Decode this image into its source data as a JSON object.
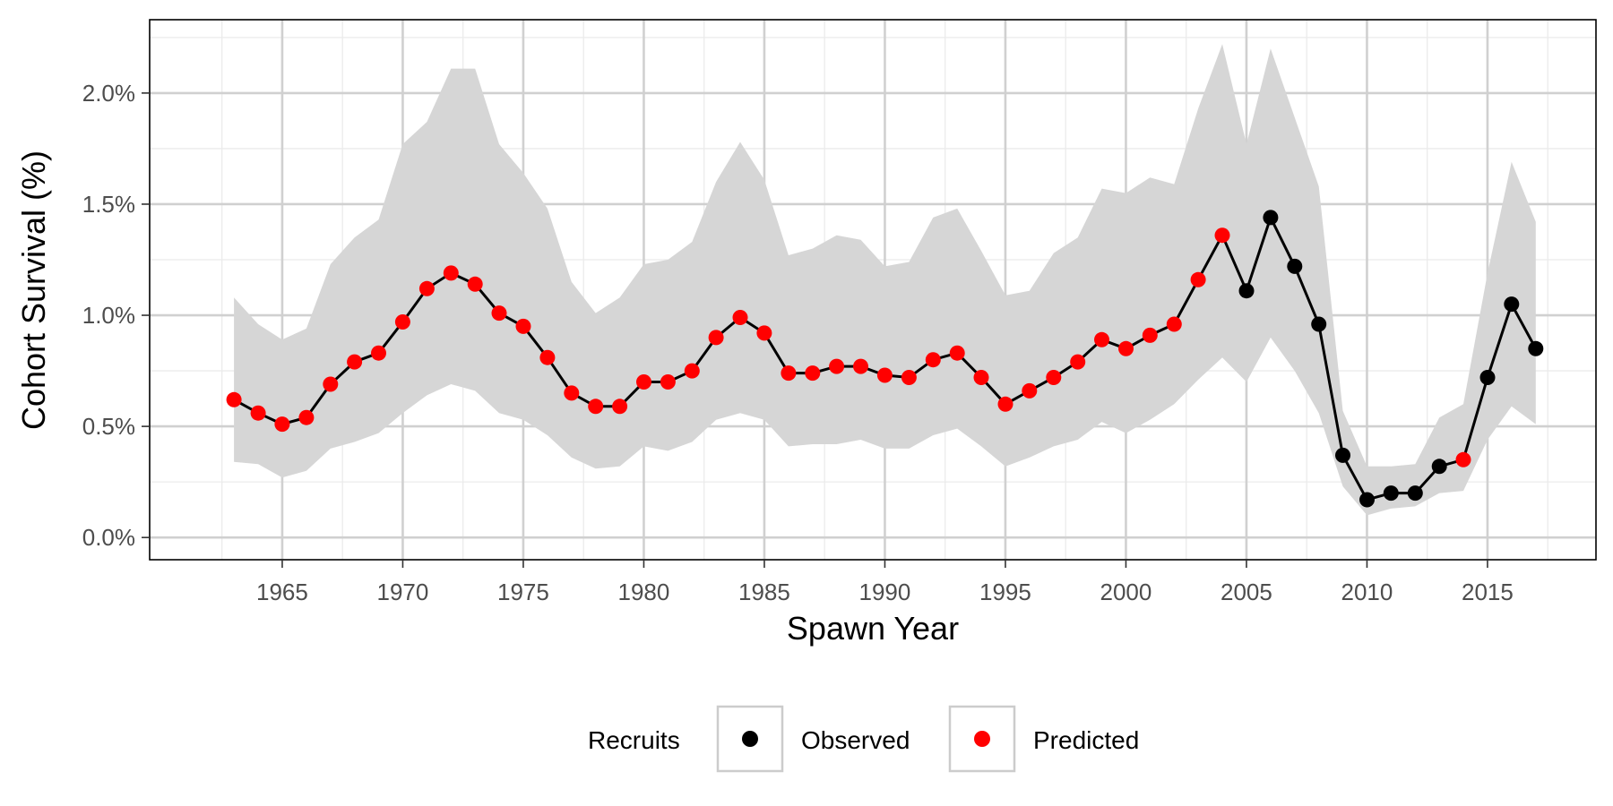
{
  "chart_data": {
    "type": "line",
    "title": "",
    "xlabel": "Spawn Year",
    "ylabel": "Cohort Survival (%)",
    "xlim": [
      1959.5,
      2019.5
    ],
    "ylim": [
      -0.1,
      2.33
    ],
    "x_ticks": [
      1965,
      1970,
      1975,
      1980,
      1985,
      1990,
      1995,
      2000,
      2005,
      2010,
      2015
    ],
    "x_tick_labels": [
      "1965",
      "1970",
      "1975",
      "1980",
      "1985",
      "1990",
      "1995",
      "2000",
      "2005",
      "2010",
      "2015"
    ],
    "y_ticks": [
      0.0,
      0.5,
      1.0,
      1.5,
      2.0
    ],
    "y_tick_labels": [
      "0.0%",
      "0.5%",
      "1.0%",
      "1.5%",
      "2.0%"
    ],
    "grid": true,
    "legend": {
      "title": "Recruits",
      "position": "bottom",
      "entries": [
        {
          "label": "Observed",
          "color": "#000000"
        },
        {
          "label": "Predicted",
          "color": "#ff0000"
        }
      ]
    },
    "colors": {
      "line": "#000000",
      "ribbon": "#d6d6d6",
      "observed": "#000000",
      "predicted": "#ff0000",
      "grid": "#d0d0d0"
    },
    "x": [
      1963,
      1964,
      1965,
      1966,
      1967,
      1968,
      1969,
      1970,
      1971,
      1972,
      1973,
      1974,
      1975,
      1976,
      1977,
      1978,
      1979,
      1980,
      1981,
      1982,
      1983,
      1984,
      1985,
      1986,
      1987,
      1988,
      1989,
      1990,
      1991,
      1992,
      1993,
      1994,
      1995,
      1996,
      1997,
      1998,
      1999,
      2000,
      2001,
      2002,
      2003,
      2004,
      2005,
      2006,
      2007,
      2008,
      2009,
      2010,
      2011,
      2012,
      2013,
      2014,
      2015,
      2016,
      2017
    ],
    "y": [
      0.62,
      0.56,
      0.51,
      0.54,
      0.69,
      0.79,
      0.83,
      0.97,
      1.12,
      1.19,
      1.14,
      1.01,
      0.95,
      0.81,
      0.65,
      0.59,
      0.59,
      0.7,
      0.7,
      0.75,
      0.9,
      0.99,
      0.92,
      0.74,
      0.74,
      0.77,
      0.77,
      0.73,
      0.72,
      0.8,
      0.83,
      0.72,
      0.6,
      0.66,
      0.72,
      0.79,
      0.89,
      0.85,
      0.91,
      0.96,
      1.16,
      1.36,
      1.11,
      1.44,
      1.22,
      0.96,
      0.37,
      0.17,
      0.2,
      0.2,
      0.32,
      0.35,
      0.72,
      1.05,
      0.85
    ],
    "lower": [
      0.34,
      0.33,
      0.27,
      0.3,
      0.4,
      0.43,
      0.47,
      0.56,
      0.64,
      0.69,
      0.66,
      0.56,
      0.53,
      0.46,
      0.36,
      0.31,
      0.32,
      0.41,
      0.39,
      0.43,
      0.53,
      0.56,
      0.53,
      0.41,
      0.42,
      0.42,
      0.44,
      0.4,
      0.4,
      0.46,
      0.49,
      0.41,
      0.32,
      0.36,
      0.41,
      0.44,
      0.52,
      0.47,
      0.53,
      0.6,
      0.71,
      0.81,
      0.7,
      0.9,
      0.75,
      0.56,
      0.23,
      0.1,
      0.13,
      0.14,
      0.2,
      0.21,
      0.44,
      0.59,
      0.51
    ],
    "upper": [
      1.08,
      0.96,
      0.89,
      0.94,
      1.23,
      1.35,
      1.43,
      1.77,
      1.87,
      2.11,
      2.11,
      1.77,
      1.64,
      1.48,
      1.15,
      1.01,
      1.08,
      1.23,
      1.25,
      1.33,
      1.6,
      1.78,
      1.61,
      1.27,
      1.3,
      1.36,
      1.34,
      1.22,
      1.24,
      1.44,
      1.48,
      1.29,
      1.09,
      1.11,
      1.28,
      1.35,
      1.57,
      1.55,
      1.62,
      1.59,
      1.93,
      2.22,
      1.77,
      2.2,
      1.89,
      1.58,
      0.57,
      0.32,
      0.32,
      0.33,
      0.54,
      0.6,
      1.19,
      1.69,
      1.42
    ],
    "recruits": [
      "Predicted",
      "Predicted",
      "Predicted",
      "Predicted",
      "Predicted",
      "Predicted",
      "Predicted",
      "Predicted",
      "Predicted",
      "Predicted",
      "Predicted",
      "Predicted",
      "Predicted",
      "Predicted",
      "Predicted",
      "Predicted",
      "Predicted",
      "Predicted",
      "Predicted",
      "Predicted",
      "Predicted",
      "Predicted",
      "Predicted",
      "Predicted",
      "Predicted",
      "Predicted",
      "Predicted",
      "Predicted",
      "Predicted",
      "Predicted",
      "Predicted",
      "Predicted",
      "Predicted",
      "Predicted",
      "Predicted",
      "Predicted",
      "Predicted",
      "Predicted",
      "Predicted",
      "Predicted",
      "Predicted",
      "Predicted",
      "Observed",
      "Observed",
      "Observed",
      "Observed",
      "Observed",
      "Observed",
      "Observed",
      "Observed",
      "Observed",
      "Predicted",
      "Observed",
      "Observed",
      "Observed"
    ]
  }
}
